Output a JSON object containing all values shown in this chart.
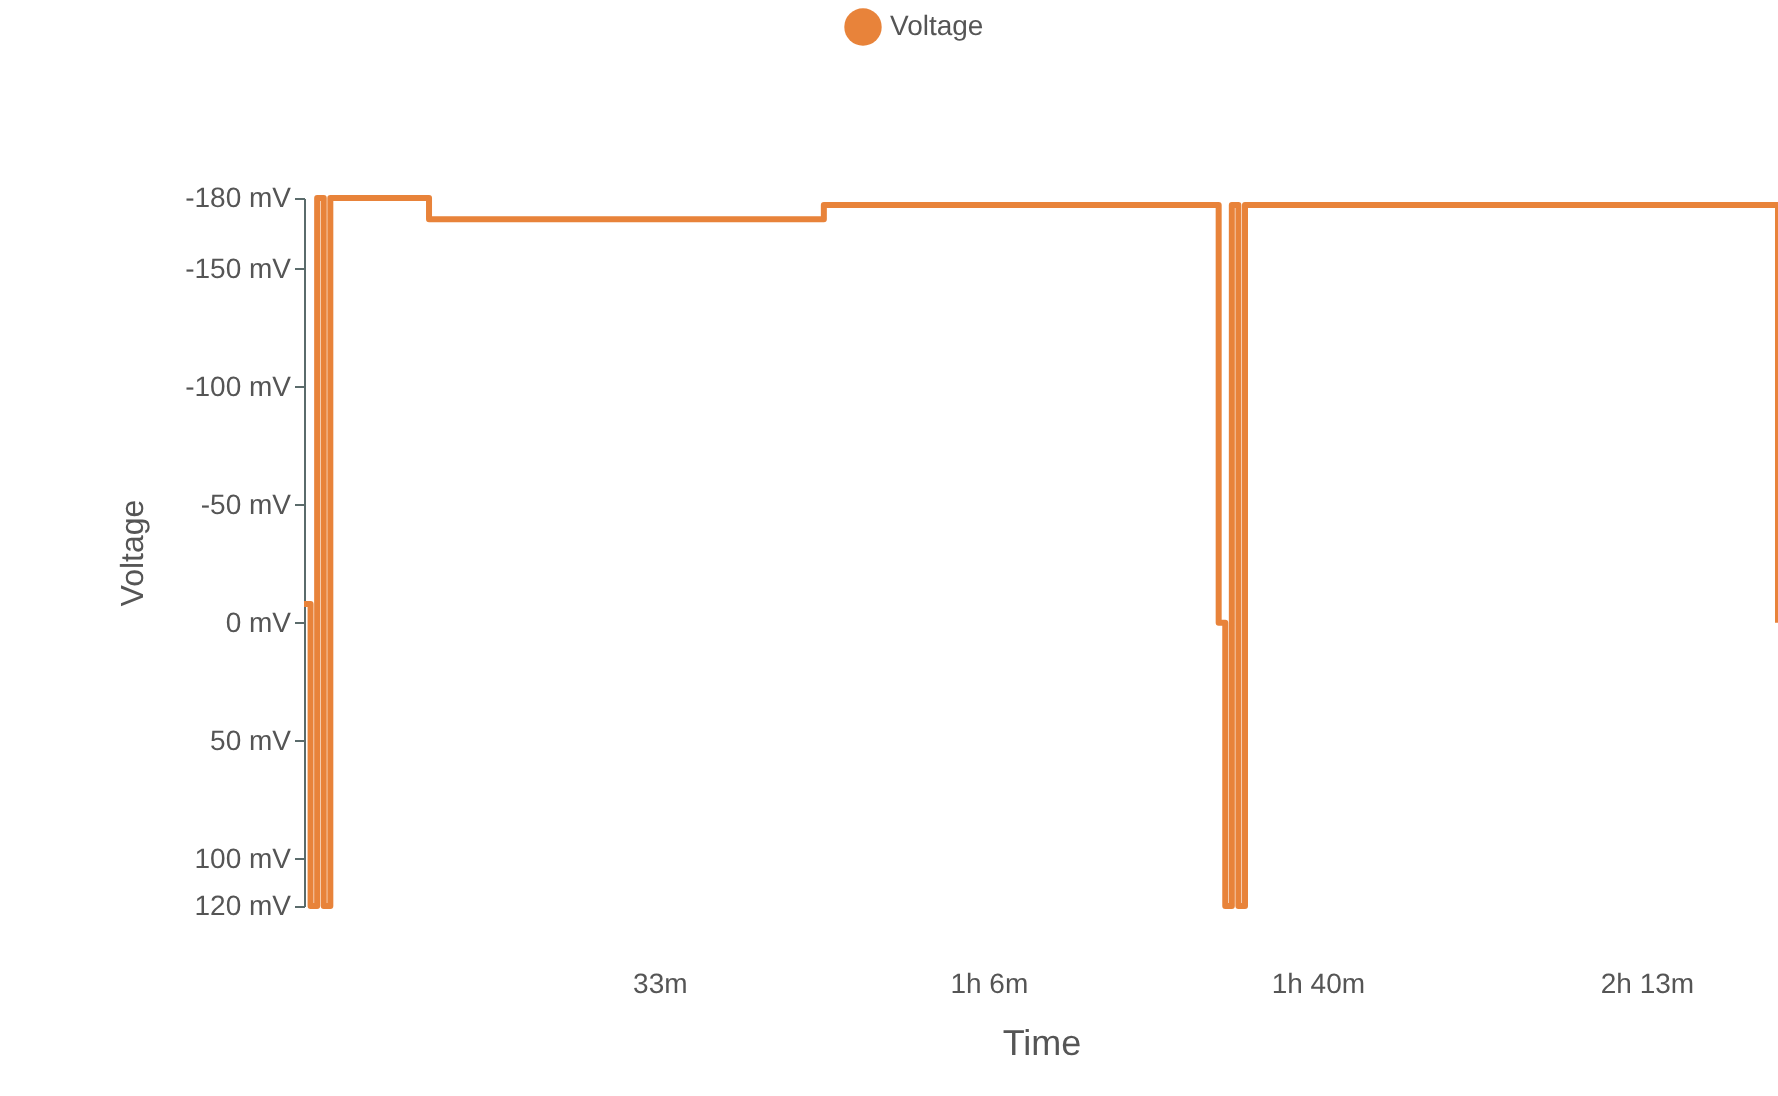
{
  "chart_data": {
    "type": "step",
    "xlabel": "Time",
    "ylabel": "Voltage",
    "legend": "top",
    "categories": [
      null,
      null,
      null,
      null,
      null,
      null,
      null,
      null,
      null,
      null,
      null,
      null,
      null,
      null,
      null,
      null,
      null,
      null,
      null,
      null,
      null,
      null,
      null,
      null,
      null,
      null,
      null,
      null,
      null,
      null,
      null,
      null,
      null,
      null,
      null,
      null,
      null,
      null,
      null,
      null,
      null,
      null,
      null,
      null,
      null,
      null,
      null,
      null,
      null,
      null,
      null,
      null,
      null,
      null,
      "33m",
      null,
      null,
      null,
      null,
      null,
      null,
      null,
      null,
      null,
      null,
      null,
      null,
      null,
      null,
      null,
      null,
      null,
      null,
      null,
      null,
      null,
      null,
      null,
      null,
      null,
      null,
      null,
      null,
      null,
      null,
      null,
      null,
      null,
      null,
      null,
      null,
      null,
      null,
      null,
      null,
      null,
      null,
      null,
      null,
      null,
      null,
      null,
      null,
      null,
      "1h 6m",
      null,
      null,
      null,
      null,
      null,
      null,
      null,
      null,
      null,
      null,
      null,
      null,
      null,
      null,
      null,
      null,
      null,
      null,
      null,
      null,
      null,
      null,
      null,
      null,
      null,
      null,
      null,
      null,
      null,
      null,
      null,
      null,
      null,
      null,
      null,
      null,
      null,
      null,
      null,
      null,
      null,
      null,
      null,
      null,
      null,
      null,
      null,
      null,
      null,
      "1h 40m",
      null,
      null,
      null,
      null,
      null,
      null,
      null,
      null,
      null,
      null,
      null,
      null,
      null,
      null,
      null,
      null,
      null,
      null,
      null,
      null,
      null,
      null,
      null,
      null,
      null,
      null,
      null,
      null,
      null,
      null,
      null,
      null,
      null,
      null,
      null,
      null,
      null,
      null,
      null,
      null,
      null,
      null,
      null,
      null,
      null,
      null,
      null,
      null,
      null,
      "2h 13m",
      null,
      null,
      null,
      null,
      null,
      null,
      null,
      null,
      null,
      null,
      null,
      null,
      null,
      null,
      null,
      null,
      null,
      null,
      null,
      null
    ],
    "series": [
      {
        "name": "Voltage",
        "color": "#e8833a",
        "values": [
          -8,
          120,
          -180,
          120,
          -180,
          -180,
          -180,
          -180,
          -180,
          -180,
          -180,
          -180,
          -180,
          -180,
          -180,
          -180,
          -180,
          -180,
          -180,
          -171,
          -171,
          -171,
          -171,
          -171,
          -171,
          -171,
          -171,
          -171,
          -171,
          -171,
          -171,
          -171,
          -171,
          -171,
          -171,
          -171,
          -171,
          -171,
          -171,
          -171,
          -171,
          -171,
          -171,
          -171,
          -171,
          -171,
          -171,
          -171,
          -171,
          -171,
          -171,
          -171,
          -171,
          -171,
          -171,
          -171,
          -171,
          -171,
          -171,
          -171,
          -171,
          -171,
          -171,
          -171,
          -171,
          -171,
          -171,
          -171,
          -171,
          -171,
          -171,
          -171,
          -171,
          -171,
          -171,
          -171,
          -171,
          -171,
          -171,
          -177,
          -177,
          -177,
          -177,
          -177,
          -177,
          -177,
          -177,
          -177,
          -177,
          -177,
          -177,
          -177,
          -177,
          -177,
          -177,
          -177,
          -177,
          -177,
          -177,
          -177,
          -177,
          -177,
          -177,
          -177,
          -177,
          -177,
          -177,
          -177,
          -177,
          -177,
          -177,
          -177,
          -177,
          -177,
          -177,
          -177,
          -177,
          -177,
          -177,
          -177,
          -177,
          -177,
          -177,
          -177,
          -177,
          -177,
          -177,
          -177,
          -177,
          -177,
          -177,
          -177,
          -177,
          -177,
          -177,
          -177,
          -177,
          -177,
          -177,
          0,
          120,
          -177,
          120,
          -177,
          -177,
          -177,
          -177,
          -177,
          -177,
          -177,
          -177,
          -177,
          -177,
          -177,
          -177,
          -177,
          -177,
          -177,
          -177,
          -177,
          -177,
          -177,
          -177,
          -177,
          -177,
          -177,
          -177,
          -177,
          -177,
          -177,
          -177,
          -177,
          -177,
          -177,
          -177,
          -177,
          -177,
          -177,
          -177,
          -177,
          -177,
          -177,
          -177,
          -177,
          -177,
          -177,
          -177,
          -177,
          -177,
          -177,
          -177,
          -177,
          -177,
          -177,
          -177,
          -177,
          -177,
          -177,
          -177,
          -177,
          -177,
          -177,
          -177,
          -177,
          -177,
          -177,
          -177,
          -177,
          -177,
          -177,
          -177,
          -177,
          -177,
          -177,
          -177,
          -177,
          -177,
          -177,
          -177,
          -177,
          -177,
          -177,
          -177,
          -177,
          0
        ]
      }
    ],
    "ylim": [
      120,
      -180
    ],
    "yticks": [
      {
        "value": -180,
        "label": "-180 mV"
      },
      {
        "value": -150,
        "label": "-150 mV"
      },
      {
        "value": -100,
        "label": "-100 mV"
      },
      {
        "value": -50,
        "label": "-50 mV"
      },
      {
        "value": 0,
        "label": "0 mV"
      },
      {
        "value": 50,
        "label": "50 mV"
      },
      {
        "value": 100,
        "label": "100 mV"
      },
      {
        "value": 120,
        "label": "120 mV"
      }
    ]
  }
}
